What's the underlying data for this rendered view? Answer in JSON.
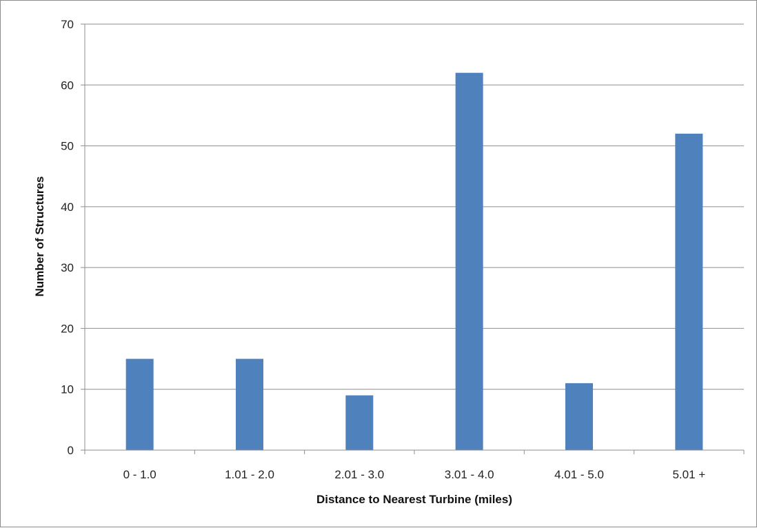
{
  "chart_data": {
    "type": "bar",
    "xlabel": "Distance to Nearest Turbine (miles)",
    "ylabel": "Number of Structures",
    "categories": [
      "0 - 1.0",
      "1.01 - 2.0",
      "2.01 - 3.0",
      "3.01 - 4.0",
      "4.01 - 5.0",
      "5.01 +"
    ],
    "values": [
      15,
      15,
      9,
      62,
      11,
      52
    ],
    "ylim": [
      0,
      70
    ],
    "yticks": [
      0,
      10,
      20,
      30,
      40,
      50,
      60,
      70
    ],
    "grid": true,
    "legend": "none",
    "bar_color": "#4f81bd"
  }
}
